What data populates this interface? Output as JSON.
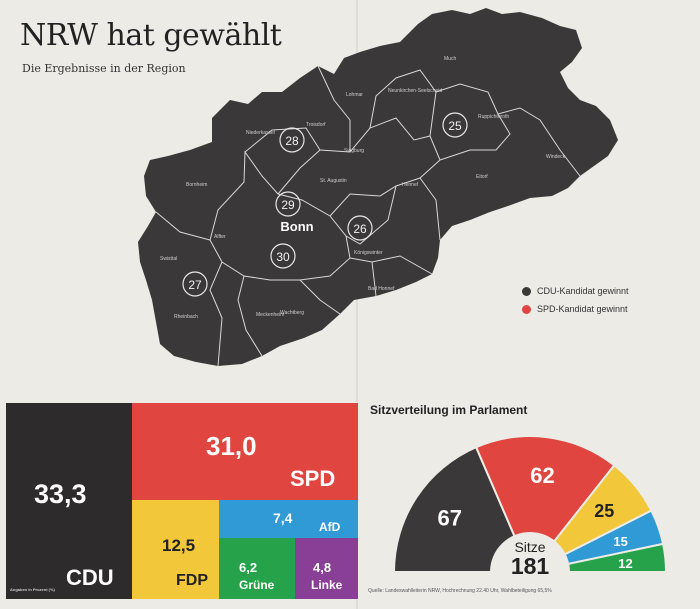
{
  "header": {
    "title": "NRW hat gewählt",
    "subtitle": "Die Ergebnisse in der Region"
  },
  "map": {
    "colors": {
      "cdu": "#3a3839",
      "spd": "#e0453f",
      "line": "#dcdcdc"
    },
    "districts": [
      {
        "label": "28"
      },
      {
        "label": "25"
      },
      {
        "label": "29"
      },
      {
        "label": "26"
      },
      {
        "label": "30"
      },
      {
        "label": "27"
      }
    ],
    "city": "Bonn",
    "towns": [
      "Much",
      "Lohmar",
      "Neunkirchen-Seelscheid",
      "Ruppichteroth",
      "Troisdorf",
      "Niederkassel",
      "Siegburg",
      "St. Augustin",
      "Hennef",
      "Eitorf",
      "Windeck",
      "Bornheim",
      "Alfter",
      "Königswinter",
      "Swisttal",
      "Rheinbach",
      "Meckenheim",
      "Wachtberg",
      "Bad Honnef"
    ]
  },
  "legend": [
    {
      "label": "CDU-Kandidat gewinnt",
      "color": "#3a3839"
    },
    {
      "label": "SPD-Kandidat gewinnt",
      "color": "#e0453f"
    }
  ],
  "results": {
    "note": "Angaben in Prozent (%)",
    "parties": [
      {
        "name": "CDU",
        "value": "33,3",
        "color": "#2d2b2c"
      },
      {
        "name": "SPD",
        "value": "31,0",
        "color": "#e0453f"
      },
      {
        "name": "FDP",
        "value": "12,5",
        "color": "#f2c83a"
      },
      {
        "name": "AfD",
        "value": "7,4",
        "color": "#2f9ad5"
      },
      {
        "name": "Grüne",
        "value": "6,2",
        "color": "#26a34a"
      },
      {
        "name": "Linke",
        "value": "4,8",
        "color": "#8a3f97"
      }
    ]
  },
  "seats": {
    "title": "Sitzverteilung im Parlament",
    "total_label": "Sitze",
    "total": "181",
    "source": "Quelle: Landeswahlleiterin NRW, Hochrechnung 22.40 Uhr, Wahlbeteiligung 65,5%"
  },
  "chart_data": {
    "type": "pie",
    "title": "Sitzverteilung im Parlament",
    "categories": [
      "CDU",
      "SPD",
      "FDP",
      "AfD",
      "Grüne"
    ],
    "values": [
      67,
      62,
      25,
      15,
      12
    ],
    "colors": [
      "#3a3839",
      "#e0453f",
      "#f2c83a",
      "#2f9ad5",
      "#26a34a"
    ],
    "total": 181
  }
}
